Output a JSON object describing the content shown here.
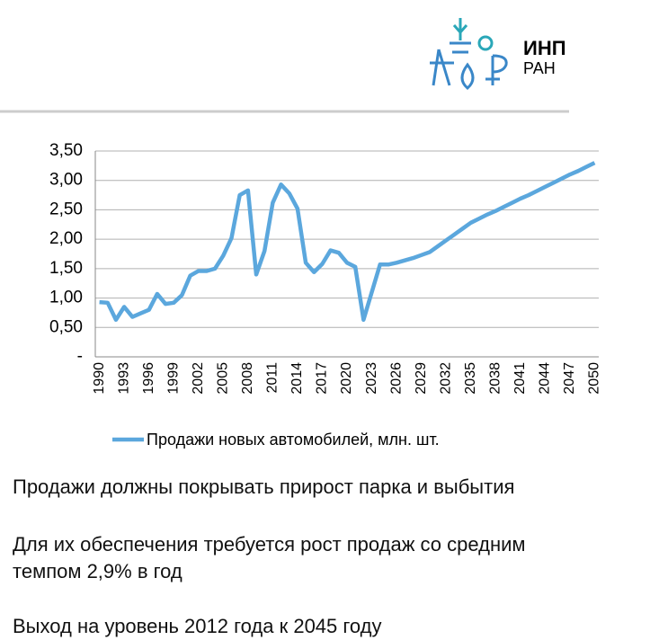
{
  "logo": {
    "name": "ИНП",
    "org": "РАН"
  },
  "chart_data": {
    "type": "line",
    "categories": [
      "1990",
      null,
      null,
      "1993",
      null,
      null,
      "1996",
      null,
      null,
      "1999",
      null,
      null,
      "2002",
      null,
      null,
      "2005",
      null,
      null,
      "2008",
      null,
      null,
      "2011",
      null,
      null,
      "2014",
      null,
      null,
      "2017",
      null,
      null,
      "2020",
      null,
      null,
      "2023",
      null,
      null,
      "2026",
      null,
      null,
      "2029",
      null,
      null,
      "2032",
      null,
      null,
      "2035",
      null,
      null,
      "2038",
      null,
      null,
      "2041",
      null,
      null,
      "2044",
      null,
      null,
      "2047",
      null,
      null,
      "2050"
    ],
    "series": [
      {
        "name": "Продажи новых автомобилей, млн. шт.",
        "color": "#5ba7dd",
        "values": [
          0.93,
          0.92,
          0.63,
          0.85,
          0.68,
          0.74,
          0.8,
          1.07,
          0.9,
          0.92,
          1.05,
          1.38,
          1.46,
          1.46,
          1.5,
          1.72,
          2.02,
          2.75,
          2.83,
          1.4,
          1.8,
          2.62,
          2.93,
          2.78,
          2.52,
          1.6,
          1.44,
          1.58,
          1.81,
          1.77,
          1.6,
          1.53,
          0.63,
          1.1,
          1.57,
          1.57,
          1.6,
          1.64,
          1.68,
          1.73,
          1.78,
          1.88,
          1.98,
          2.08,
          2.18,
          2.28,
          2.35,
          2.42,
          2.48,
          2.55,
          2.62,
          2.69,
          2.75,
          2.82,
          2.89,
          2.96,
          3.03,
          3.1,
          3.16,
          3.23,
          3.3
        ]
      }
    ],
    "ylim": [
      0,
      3.5
    ],
    "yticks": [
      {
        "value": 0,
        "label": "-"
      },
      {
        "value": 0.5,
        "label": "0,50"
      },
      {
        "value": 1,
        "label": "1,00"
      },
      {
        "value": 1.5,
        "label": "1,50"
      },
      {
        "value": 2,
        "label": "2,00"
      },
      {
        "value": 2.5,
        "label": "2,50"
      },
      {
        "value": 3,
        "label": "3,00"
      },
      {
        "value": 3.5,
        "label": "3,50"
      }
    ],
    "grid": true
  },
  "text": {
    "paragraphs": [
      "Продажи должны покрывать прирост парка и выбытия",
      "Для их обеспечения требуется рост продаж со средним темпом 2,9% в год",
      "Выход на уровень 2012 года к 2045 году"
    ]
  }
}
